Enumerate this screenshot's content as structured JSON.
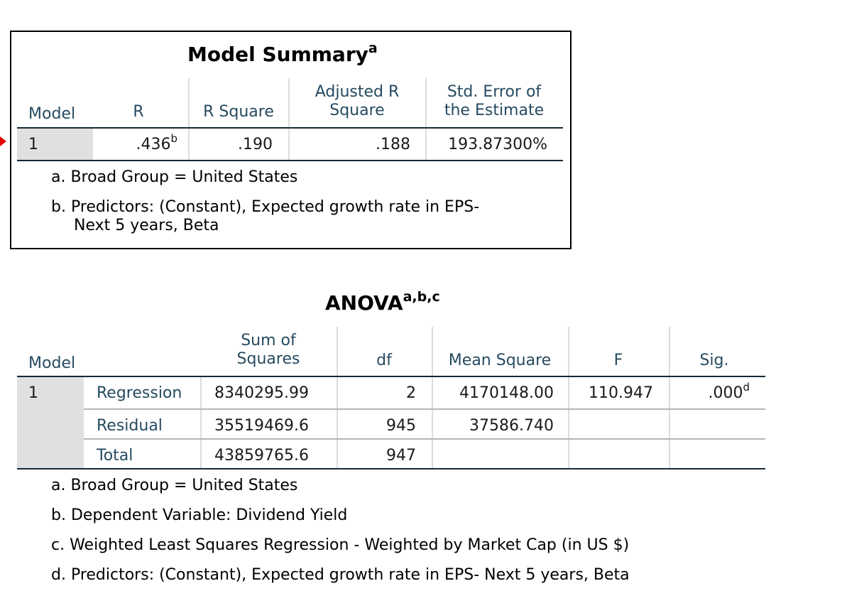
{
  "model_summary": {
    "title": "Model Summary",
    "title_sup": "a",
    "headers": {
      "model": "Model",
      "r": "R",
      "r_square": "R Square",
      "adj_r_square_1": "Adjusted R",
      "adj_r_square_2": "Square",
      "std_err_1": "Std. Error of",
      "std_err_2": "the Estimate"
    },
    "row": {
      "model": "1",
      "r": ".436",
      "r_sup": "b",
      "r_square": ".190",
      "adj_r_square": ".188",
      "std_err": "193.87300%"
    },
    "footnotes": {
      "a": "a. Broad Group = United States",
      "b1": "b. Predictors: (Constant), Expected growth rate in EPS-",
      "b2": "Next 5 years, Beta"
    }
  },
  "anova": {
    "title": "ANOVA",
    "title_sup": "a,b,c",
    "headers": {
      "model": "Model",
      "sum_sq_1": "Sum of",
      "sum_sq_2": "Squares",
      "df": "df",
      "mean_sq": "Mean Square",
      "f": "F",
      "sig": "Sig."
    },
    "model_number": "1",
    "rows": [
      {
        "label": "Regression",
        "sum_sq": "8340295.99",
        "df": "2",
        "mean_sq": "4170148.00",
        "f": "110.947",
        "sig": ".000",
        "sig_sup": "d"
      },
      {
        "label": "Residual",
        "sum_sq": "35519469.6",
        "df": "945",
        "mean_sq": "37586.740",
        "f": "",
        "sig": ""
      },
      {
        "label": "Total",
        "sum_sq": "43859765.6",
        "df": "947",
        "mean_sq": "",
        "f": "",
        "sig": ""
      }
    ],
    "footnotes": {
      "a": "a. Broad Group = United States",
      "b": "b. Dependent Variable: Dividend Yield",
      "c": "c. Weighted Least Squares Regression - Weighted by Market Cap (in US $)",
      "d": "d. Predictors: (Constant), Expected growth rate in EPS- Next 5 years, Beta"
    }
  }
}
